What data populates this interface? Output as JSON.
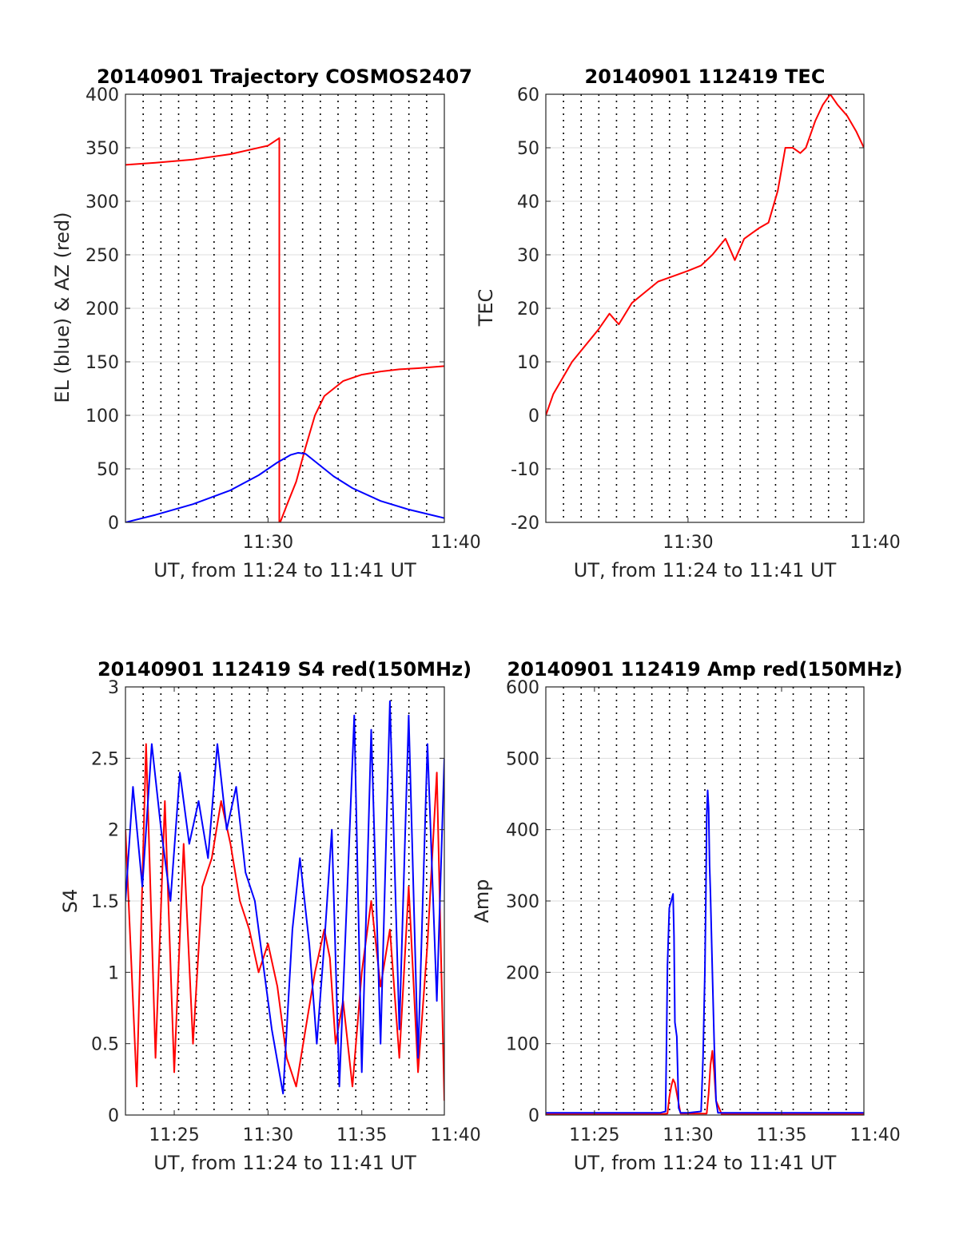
{
  "figure": {
    "background": "#ffffff"
  },
  "colors": {
    "red": "#ff0000",
    "blue": "#0000ff",
    "axis": "#262626",
    "grid": "#dddddd"
  },
  "chart_data": [
    {
      "id": "trajectory",
      "type": "line",
      "title": "20140901 Trajectory COSMOS2407",
      "xlabel": "UT, from 11:24 to 11:41 UT",
      "ylabel": "EL (blue) & AZ (red)",
      "xlim": [
        11.4,
        28.4
      ],
      "ylim": [
        0,
        400
      ],
      "x_ticks": [
        {
          "v": 19.0,
          "label": "11:30"
        },
        {
          "v": 29.0,
          "label": "11:40"
        }
      ],
      "y_ticks": [
        {
          "v": 0,
          "label": "0"
        },
        {
          "v": 50,
          "label": "50"
        },
        {
          "v": 100,
          "label": "100"
        },
        {
          "v": 150,
          "label": "150"
        },
        {
          "v": 200,
          "label": "200"
        },
        {
          "v": 250,
          "label": "250"
        },
        {
          "v": 300,
          "label": "300"
        },
        {
          "v": 350,
          "label": "350"
        },
        {
          "v": 400,
          "label": "400"
        }
      ],
      "dotted_vlines_count": 17,
      "series": [
        {
          "color": "#ff0000",
          "x": [
            11.4,
            13,
            15,
            17,
            19,
            19.6,
            19.6,
            19.65,
            20.0,
            20.5,
            21.0,
            21.5,
            22.0,
            23.0,
            24.0,
            25.0,
            26.0,
            27.0,
            28.4
          ],
          "y": [
            334,
            336,
            339,
            344,
            352,
            359,
            0,
            0,
            16,
            38,
            70,
            100,
            118,
            132,
            138,
            141,
            143,
            144,
            146
          ]
        },
        {
          "color": "#0000ff",
          "x": [
            11.4,
            13,
            15,
            17,
            18.5,
            19.5,
            20.2,
            20.6,
            21.0,
            21.5,
            22.5,
            23.5,
            25,
            26.5,
            28.4
          ],
          "y": [
            0,
            7,
            17,
            30,
            44,
            56,
            63,
            65,
            64,
            57,
            43,
            32,
            20,
            12,
            4
          ]
        }
      ]
    },
    {
      "id": "tec",
      "type": "line",
      "title": "20140901 112419 TEC",
      "xlabel": "UT, from 11:24 to 11:41 UT",
      "ylabel": "TEC",
      "xlim": [
        11.4,
        28.4
      ],
      "ylim": [
        -20,
        60
      ],
      "x_ticks": [
        {
          "v": 19.0,
          "label": "11:30"
        },
        {
          "v": 29.0,
          "label": "11:40"
        }
      ],
      "y_ticks": [
        {
          "v": -20,
          "label": "-20"
        },
        {
          "v": -10,
          "label": "-10"
        },
        {
          "v": 0,
          "label": "0"
        },
        {
          "v": 10,
          "label": "10"
        },
        {
          "v": 20,
          "label": "20"
        },
        {
          "v": 30,
          "label": "30"
        },
        {
          "v": 40,
          "label": "40"
        },
        {
          "v": 50,
          "label": "50"
        },
        {
          "v": 60,
          "label": "60"
        }
      ],
      "dotted_vlines_count": 17,
      "series": [
        {
          "color": "#ff0000",
          "x": [
            11.4,
            11.8,
            12.3,
            12.8,
            13.5,
            14.2,
            14.8,
            15.3,
            16.0,
            16.7,
            17.4,
            18.2,
            19.0,
            19.7,
            20.3,
            21.0,
            21.5,
            22.0,
            22.4,
            22.8,
            23.3,
            23.8,
            24.2,
            24.6,
            25.0,
            25.3,
            25.8,
            26.2,
            26.6,
            27.0,
            27.5,
            28.0,
            28.4
          ],
          "y": [
            0,
            4,
            7,
            10,
            13,
            16,
            19,
            17,
            21,
            23,
            25,
            26,
            27,
            28,
            30,
            33,
            29,
            33,
            34,
            35,
            36,
            42,
            50,
            50,
            49,
            50,
            55,
            58,
            60,
            58,
            56,
            53,
            50
          ]
        }
      ]
    },
    {
      "id": "s4",
      "type": "line",
      "title": "20140901 112419 S4 red(150MHz)",
      "xlabel": "UT, from 11:24 to 11:41 UT",
      "ylabel": "S4",
      "xlim": [
        11.4,
        28.4
      ],
      "ylim": [
        0,
        3
      ],
      "x_ticks": [
        {
          "v": 14,
          "label": "11:25"
        },
        {
          "v": 19,
          "label": "11:30"
        },
        {
          "v": 24,
          "label": "11:35"
        },
        {
          "v": 29,
          "label": "11:40"
        }
      ],
      "y_ticks": [
        {
          "v": 0,
          "label": "0"
        },
        {
          "v": 0.5,
          "label": "0.5"
        },
        {
          "v": 1,
          "label": "1"
        },
        {
          "v": 1.5,
          "label": "1.5"
        },
        {
          "v": 2,
          "label": "2"
        },
        {
          "v": 2.5,
          "label": "2.5"
        },
        {
          "v": 3,
          "label": "3"
        }
      ],
      "dotted_vlines_count": 17,
      "series": [
        {
          "color": "#ff0000",
          "x": [
            11.4,
            12.0,
            12.5,
            13.0,
            13.5,
            14.0,
            14.5,
            15.0,
            15.5,
            16.0,
            16.5,
            17.0,
            17.5,
            18.0,
            18.5,
            19.0,
            19.5,
            20.0,
            20.5,
            21.0,
            21.5,
            22.0,
            22.3,
            22.6,
            23.0,
            23.5,
            24.0,
            24.5,
            25.0,
            25.5,
            26.0,
            26.5,
            27.0,
            27.5,
            28.0,
            28.4
          ],
          "y": [
            2.0,
            0.2,
            2.6,
            0.4,
            2.2,
            0.3,
            1.9,
            0.5,
            1.6,
            1.8,
            2.2,
            1.9,
            1.5,
            1.3,
            1.0,
            1.2,
            0.9,
            0.4,
            0.2,
            0.6,
            1.0,
            1.3,
            1.1,
            0.5,
            0.8,
            0.2,
            1.0,
            1.5,
            0.9,
            1.3,
            0.4,
            1.6,
            0.3,
            1.2,
            2.4,
            0.1
          ]
        },
        {
          "color": "#0000ff",
          "x": [
            11.4,
            11.8,
            12.3,
            12.8,
            13.3,
            13.8,
            14.3,
            14.8,
            15.3,
            15.8,
            16.3,
            16.8,
            17.3,
            17.8,
            18.3,
            18.7,
            19.2,
            19.8,
            20.3,
            20.7,
            21.2,
            21.6,
            22.0,
            22.4,
            22.8,
            23.2,
            23.6,
            24.0,
            24.5,
            25.0,
            25.5,
            26.0,
            26.5,
            27.0,
            27.5,
            28.0,
            28.4
          ],
          "y": [
            1.5,
            2.3,
            1.6,
            2.6,
            2.0,
            1.5,
            2.4,
            1.9,
            2.2,
            1.8,
            2.6,
            2.0,
            2.3,
            1.7,
            1.5,
            1.1,
            0.6,
            0.15,
            1.3,
            1.8,
            1.2,
            0.5,
            1.2,
            2.0,
            0.2,
            1.5,
            2.8,
            0.3,
            2.7,
            0.5,
            2.9,
            0.6,
            2.8,
            0.4,
            2.6,
            0.8,
            2.5
          ]
        }
      ]
    },
    {
      "id": "amp",
      "type": "line",
      "title": "20140901 112419 Amp red(150MHz)",
      "xlabel": "UT, from 11:24 to 11:41 UT",
      "ylabel": "Amp",
      "xlim": [
        11.4,
        28.4
      ],
      "ylim": [
        0,
        600
      ],
      "x_ticks": [
        {
          "v": 14,
          "label": "11:25"
        },
        {
          "v": 19,
          "label": "11:30"
        },
        {
          "v": 24,
          "label": "11:35"
        },
        {
          "v": 29,
          "label": "11:40"
        }
      ],
      "y_ticks": [
        {
          "v": 0,
          "label": "0"
        },
        {
          "v": 100,
          "label": "100"
        },
        {
          "v": 200,
          "label": "200"
        },
        {
          "v": 300,
          "label": "300"
        },
        {
          "v": 400,
          "label": "400"
        },
        {
          "v": 500,
          "label": "500"
        },
        {
          "v": 600,
          "label": "600"
        }
      ],
      "dotted_vlines_count": 17,
      "series": [
        {
          "color": "#ff0000",
          "x": [
            11.4,
            17.5,
            17.9,
            18.0,
            18.1,
            18.2,
            18.3,
            18.4,
            18.6,
            20.0,
            20.1,
            20.2,
            20.3,
            20.4,
            20.5,
            20.8,
            28.4
          ],
          "y": [
            1,
            1,
            2,
            25,
            40,
            50,
            45,
            30,
            2,
            2,
            30,
            70,
            90,
            60,
            20,
            1,
            1
          ]
        },
        {
          "color": "#0000ff",
          "x": [
            11.4,
            17.5,
            17.8,
            17.85,
            17.9,
            18.0,
            18.1,
            18.2,
            18.25,
            18.3,
            18.4,
            18.5,
            18.6,
            19.0,
            19.7,
            19.8,
            19.9,
            19.95,
            20.0,
            20.05,
            20.1,
            20.15,
            20.2,
            20.3,
            20.4,
            20.5,
            20.6,
            28.4
          ],
          "y": [
            3,
            3,
            5,
            100,
            210,
            290,
            300,
            310,
            250,
            130,
            110,
            10,
            3,
            3,
            5,
            80,
            200,
            300,
            420,
            455,
            430,
            350,
            310,
            200,
            100,
            20,
            3,
            3
          ]
        }
      ]
    }
  ]
}
